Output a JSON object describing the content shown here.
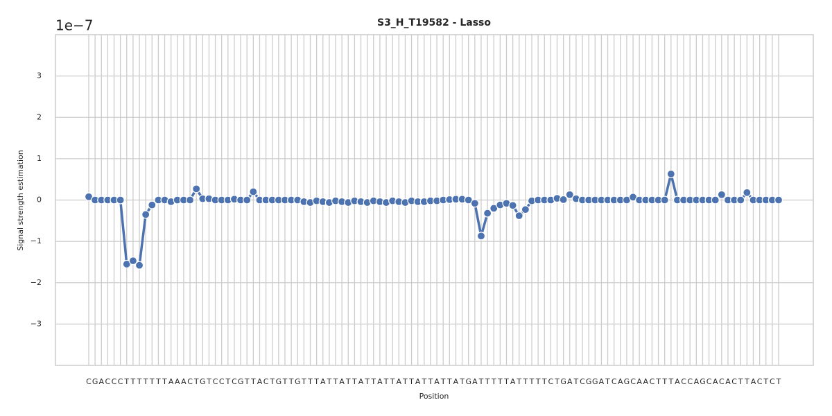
{
  "chart_data": {
    "type": "line",
    "title": "S3_H_T19582 - Lasso",
    "offset_text": "1e−7",
    "xlabel": "Position",
    "ylabel": "Signal strength estimation",
    "categories": [
      "C",
      "G",
      "A",
      "C",
      "C",
      "C",
      "T",
      "T",
      "T",
      "T",
      "T",
      "T",
      "T",
      "A",
      "A",
      "A",
      "C",
      "T",
      "G",
      "T",
      "C",
      "C",
      "T",
      "C",
      "G",
      "T",
      "T",
      "A",
      "C",
      "T",
      "G",
      "T",
      "T",
      "G",
      "T",
      "T",
      "T",
      "A",
      "T",
      "T",
      "A",
      "T",
      "T",
      "A",
      "T",
      "T",
      "A",
      "T",
      "T",
      "A",
      "T",
      "T",
      "A",
      "T",
      "T",
      "A",
      "T",
      "T",
      "A",
      "T",
      "G",
      "A",
      "T",
      "T",
      "T",
      "T",
      "T",
      "A",
      "T",
      "T",
      "T",
      "T",
      "T",
      "C",
      "T",
      "G",
      "A",
      "T",
      "C",
      "G",
      "G",
      "A",
      "T",
      "C",
      "A",
      "G",
      "C",
      "A",
      "A",
      "C",
      "T",
      "T",
      "T",
      "A",
      "C",
      "C",
      "A",
      "G",
      "C",
      "A",
      "C",
      "A",
      "C",
      "T",
      "T",
      "A",
      "C",
      "T",
      "C",
      "T"
    ],
    "series": [
      {
        "name": "Lasso",
        "color": "#4c72b0",
        "values": [
          0.08,
          0,
          0,
          0,
          0,
          0,
          -1.55,
          -1.47,
          -1.58,
          -0.35,
          -0.12,
          0,
          0,
          -0.04,
          0,
          0,
          0,
          0.27,
          0.03,
          0.03,
          0,
          0,
          0,
          0.02,
          0,
          0,
          0.2,
          0,
          0,
          0,
          0,
          0,
          0,
          0,
          -0.04,
          -0.06,
          -0.02,
          -0.04,
          -0.06,
          -0.02,
          -0.04,
          -0.06,
          -0.02,
          -0.04,
          -0.06,
          -0.02,
          -0.04,
          -0.06,
          -0.02,
          -0.04,
          -0.06,
          -0.02,
          -0.04,
          -0.04,
          -0.02,
          -0.02,
          0,
          0.01,
          0.02,
          0.02,
          0,
          -0.08,
          -0.87,
          -0.32,
          -0.2,
          -0.12,
          -0.08,
          -0.13,
          -0.38,
          -0.23,
          -0.02,
          0,
          0,
          0,
          0.04,
          0.01,
          0.13,
          0.03,
          0,
          0,
          0,
          0,
          0,
          0,
          0,
          0,
          0.07,
          0,
          0,
          0,
          0,
          0,
          0.63,
          0,
          0,
          0,
          0,
          0,
          0,
          0,
          0.13,
          0,
          0,
          0,
          0.18,
          0,
          0,
          0,
          0,
          0
        ]
      }
    ],
    "ylim": [
      -4,
      4
    ],
    "yticks": [
      {
        "value": -3,
        "label": "−3"
      },
      {
        "value": -2,
        "label": "−2"
      },
      {
        "value": -1,
        "label": "−1"
      },
      0,
      1,
      2,
      3
    ],
    "grid": true
  }
}
